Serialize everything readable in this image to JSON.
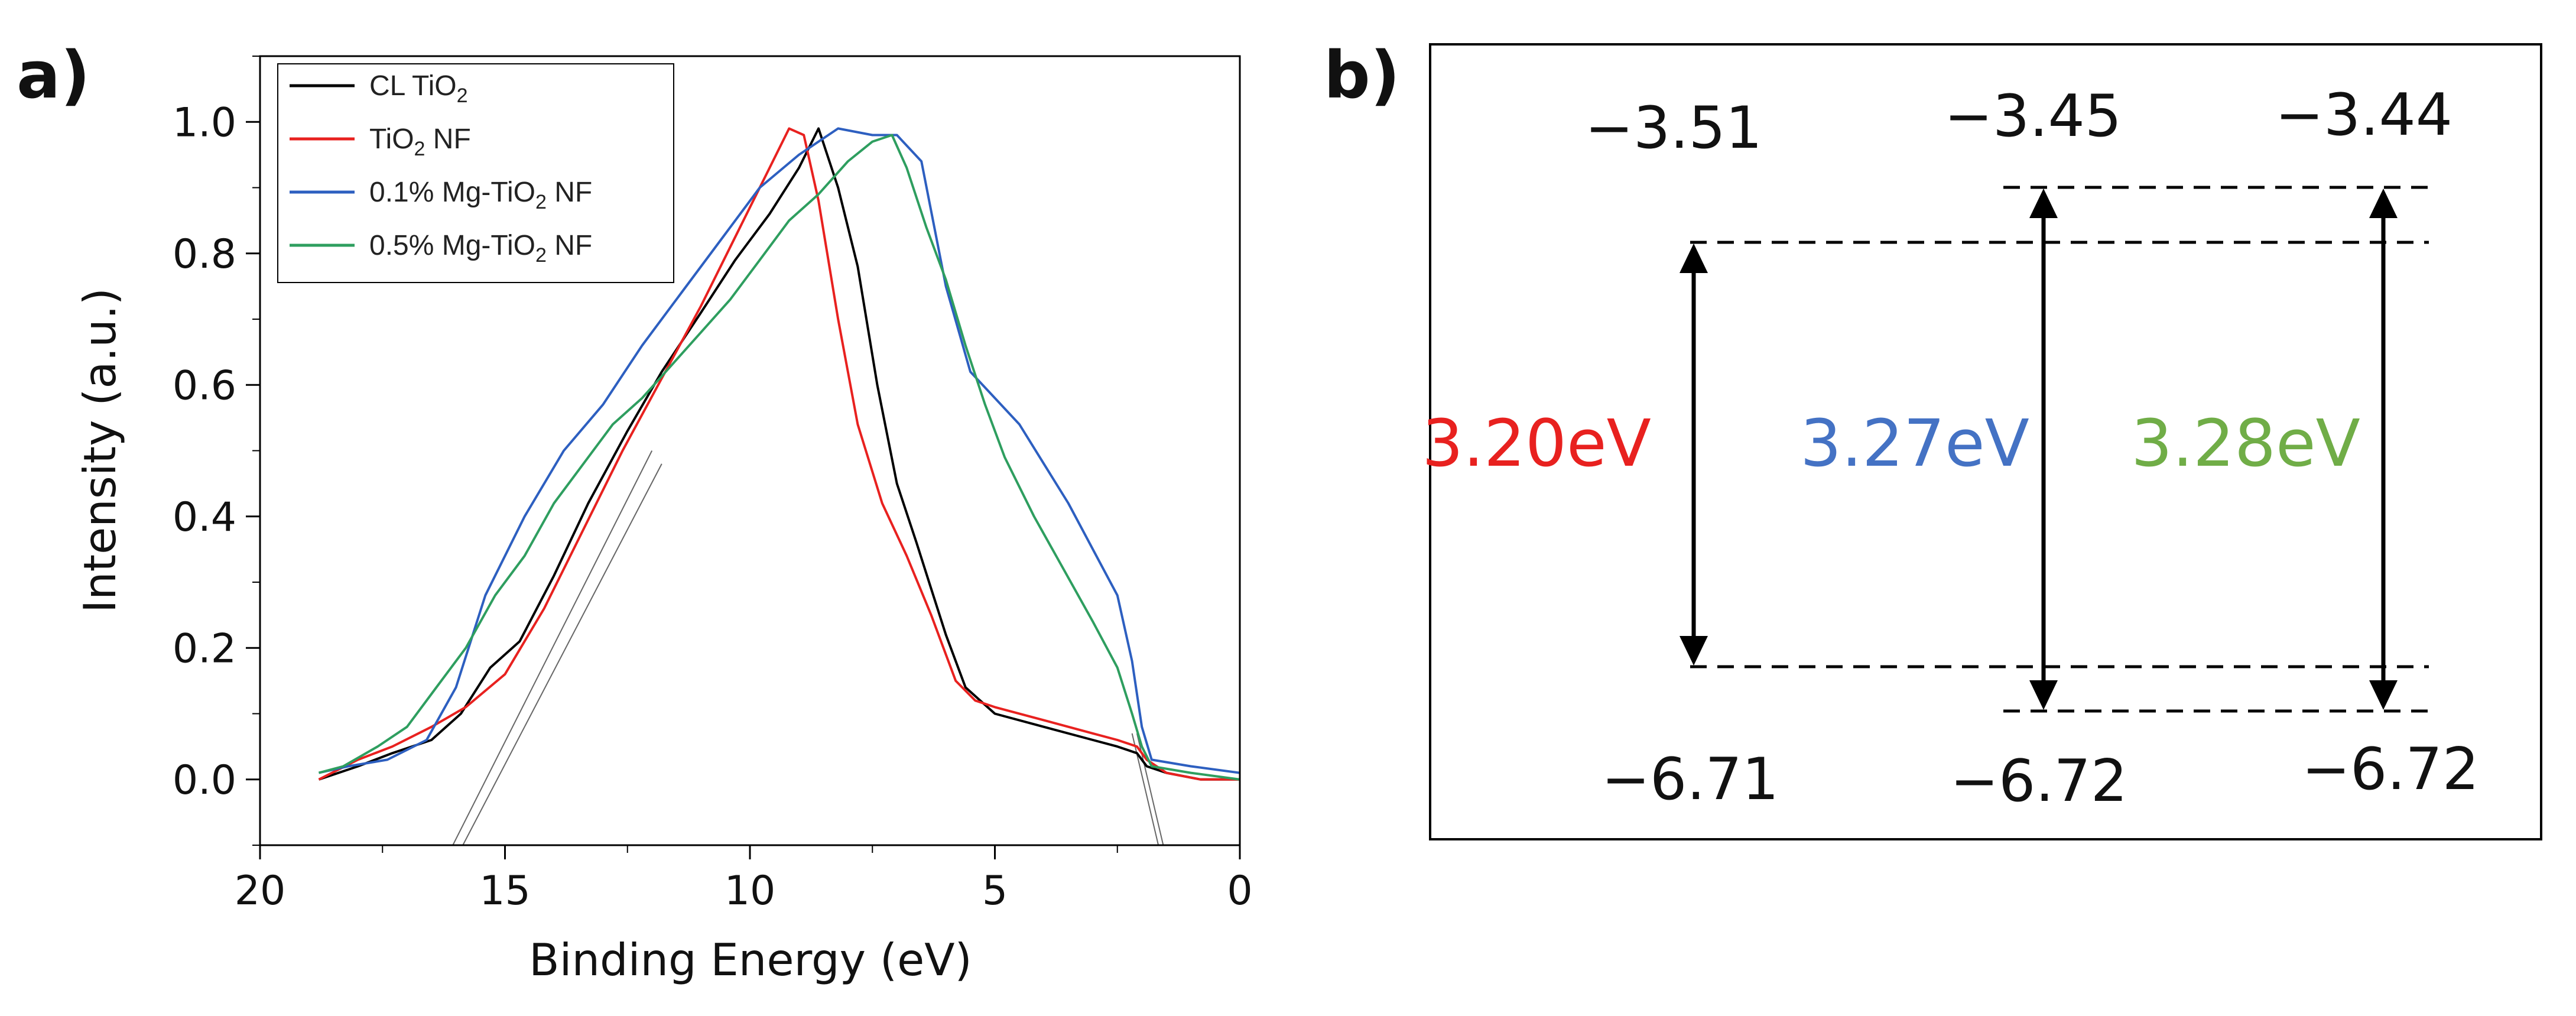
{
  "panel_a": {
    "label": "a)",
    "chart_data": {
      "type": "line",
      "xlabel": "Binding Energy (eV)",
      "ylabel": "Intensity (a.u.)",
      "xlim": [
        20,
        0
      ],
      "ylim": [
        -0.1,
        1.1
      ],
      "x_reversed": true,
      "xticks": [
        20,
        15,
        10,
        5,
        0
      ],
      "yticks": [
        0.0,
        0.2,
        0.4,
        0.6,
        0.8,
        1.0
      ],
      "xtick_labels": [
        "20",
        "15",
        "10",
        "5",
        "0"
      ],
      "ytick_labels": [
        "0.0",
        "0.2",
        "0.4",
        "0.6",
        "0.8",
        "1.0"
      ],
      "legend_position": "top-left",
      "series": [
        {
          "name": "CL TiO2",
          "legend": {
            "pre": "CL TiO",
            "sub": "2",
            "post": ""
          },
          "color": "#000000",
          "x": [
            18.8,
            18.0,
            17.3,
            16.5,
            15.9,
            15.3,
            14.7,
            14.0,
            13.3,
            12.5,
            11.8,
            11.0,
            10.3,
            9.6,
            9.0,
            8.6,
            8.2,
            7.8,
            7.4,
            7.0,
            6.6,
            6.3,
            6.0,
            5.6,
            5.0,
            4.0,
            3.0,
            2.5,
            2.1,
            1.9,
            1.5,
            0.8,
            0.0
          ],
          "y": [
            0.0,
            0.02,
            0.04,
            0.06,
            0.1,
            0.17,
            0.21,
            0.31,
            0.42,
            0.53,
            0.62,
            0.71,
            0.79,
            0.86,
            0.93,
            0.99,
            0.9,
            0.78,
            0.6,
            0.45,
            0.36,
            0.29,
            0.22,
            0.14,
            0.1,
            0.08,
            0.06,
            0.05,
            0.04,
            0.02,
            0.01,
            0.0,
            0.0
          ]
        },
        {
          "name": "TiO2 NF",
          "legend": {
            "pre": "TiO",
            "sub": "2",
            "post": " NF"
          },
          "color": "#e8211f",
          "x": [
            18.8,
            18.0,
            17.3,
            16.5,
            15.8,
            15.0,
            14.2,
            13.4,
            12.6,
            11.8,
            11.0,
            10.2,
            9.6,
            9.2,
            8.9,
            8.6,
            8.2,
            7.8,
            7.3,
            6.8,
            6.3,
            5.8,
            5.4,
            5.0,
            4.0,
            3.0,
            2.5,
            2.1,
            1.9,
            1.5,
            0.8,
            0.0
          ],
          "y": [
            0.0,
            0.03,
            0.05,
            0.08,
            0.11,
            0.16,
            0.26,
            0.38,
            0.5,
            0.61,
            0.72,
            0.84,
            0.93,
            0.99,
            0.98,
            0.88,
            0.7,
            0.54,
            0.42,
            0.34,
            0.25,
            0.15,
            0.12,
            0.11,
            0.09,
            0.07,
            0.06,
            0.05,
            0.03,
            0.01,
            0.0,
            0.0
          ]
        },
        {
          "name": "0.1% Mg-TiO2 NF",
          "legend": {
            "pre": "0.1% Mg-TiO",
            "sub": "2",
            "post": " NF"
          },
          "color": "#2d5fc0",
          "x": [
            18.8,
            18.2,
            17.4,
            16.6,
            16.0,
            15.4,
            14.6,
            13.8,
            13.0,
            12.2,
            11.4,
            10.6,
            9.8,
            9.0,
            8.2,
            7.5,
            7.0,
            6.5,
            6.0,
            5.5,
            5.0,
            4.5,
            4.0,
            3.5,
            3.0,
            2.5,
            2.2,
            2.0,
            1.8,
            1.0,
            0.0
          ],
          "y": [
            0.01,
            0.02,
            0.03,
            0.06,
            0.14,
            0.28,
            0.4,
            0.5,
            0.57,
            0.66,
            0.74,
            0.82,
            0.9,
            0.95,
            0.99,
            0.98,
            0.98,
            0.94,
            0.75,
            0.62,
            0.58,
            0.54,
            0.48,
            0.42,
            0.35,
            0.28,
            0.18,
            0.08,
            0.03,
            0.02,
            0.01
          ]
        },
        {
          "name": "0.5% Mg-TiO2 NF",
          "legend": {
            "pre": "0.5% Mg-TiO",
            "sub": "2",
            "post": " NF"
          },
          "color": "#2e9e5f",
          "x": [
            18.8,
            18.3,
            17.6,
            17.0,
            16.4,
            15.8,
            15.2,
            14.6,
            14.0,
            13.4,
            12.8,
            12.2,
            11.6,
            11.0,
            10.4,
            9.8,
            9.2,
            8.6,
            8.0,
            7.5,
            7.1,
            6.8,
            6.4,
            6.0,
            5.6,
            5.2,
            4.8,
            4.2,
            3.6,
            3.0,
            2.5,
            2.2,
            2.0,
            1.8,
            1.0,
            0.0
          ],
          "y": [
            0.01,
            0.02,
            0.05,
            0.08,
            0.14,
            0.2,
            0.28,
            0.34,
            0.42,
            0.48,
            0.54,
            0.58,
            0.63,
            0.68,
            0.73,
            0.79,
            0.85,
            0.89,
            0.94,
            0.97,
            0.98,
            0.93,
            0.84,
            0.76,
            0.66,
            0.57,
            0.49,
            0.4,
            0.32,
            0.24,
            0.17,
            0.1,
            0.05,
            0.02,
            0.01,
            0.0
          ]
        }
      ],
      "extrapolation_lines": {
        "color": "#666666",
        "lines": [
          {
            "x": [
              16.2,
              12.0
            ],
            "y": [
              -0.12,
              0.5
            ]
          },
          {
            "x": [
              16.0,
              11.8
            ],
            "y": [
              -0.12,
              0.48
            ]
          },
          {
            "x": [
              1.5,
              2.1
            ],
            "y": [
              -0.12,
              0.07
            ]
          },
          {
            "x": [
              1.6,
              2.2
            ],
            "y": [
              -0.12,
              0.07
            ]
          }
        ]
      }
    }
  },
  "panel_b": {
    "label": "b)",
    "chart_data": {
      "type": "diagram",
      "levels": [
        {
          "top": "−3.51",
          "bottom": "−6.71",
          "gap": "3.20eV",
          "gap_color": "#e8211f",
          "top_value": -3.51,
          "bottom_value": -6.71
        },
        {
          "top": "−3.45",
          "bottom": "−6.72",
          "gap": "3.27eV",
          "gap_color": "#4472c4",
          "top_value": -3.45,
          "bottom_value": -6.72
        },
        {
          "top": "−3.44",
          "bottom": "−6.72",
          "gap": "3.28eV",
          "gap_color": "#70ad47",
          "top_value": -3.44,
          "bottom_value": -6.72
        }
      ]
    }
  }
}
